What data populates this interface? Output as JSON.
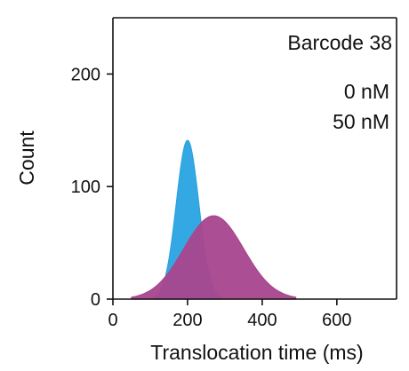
{
  "chart_data": {
    "type": "area",
    "annotation": "Barcode 38",
    "xlabel": "Translocation time (ms)",
    "ylabel": "Count",
    "xlim": [
      0,
      760
    ],
    "ylim": [
      0,
      250
    ],
    "xticks": [
      0,
      200,
      400,
      600
    ],
    "yticks": [
      0,
      100,
      200
    ],
    "grid": false,
    "legend_position": "top-right",
    "series": [
      {
        "name": "0 nM",
        "color": "#29a3e0",
        "distribution": "gaussian",
        "peak_x": 200,
        "peak_count": 141,
        "sigma": 30,
        "x_range": [
          110,
          290
        ]
      },
      {
        "name": "50 nM",
        "color": "#a8478f",
        "distribution": "gaussian",
        "peak_x": 270,
        "peak_count": 74,
        "sigma": 80,
        "x_range": [
          50,
          490
        ]
      }
    ]
  }
}
